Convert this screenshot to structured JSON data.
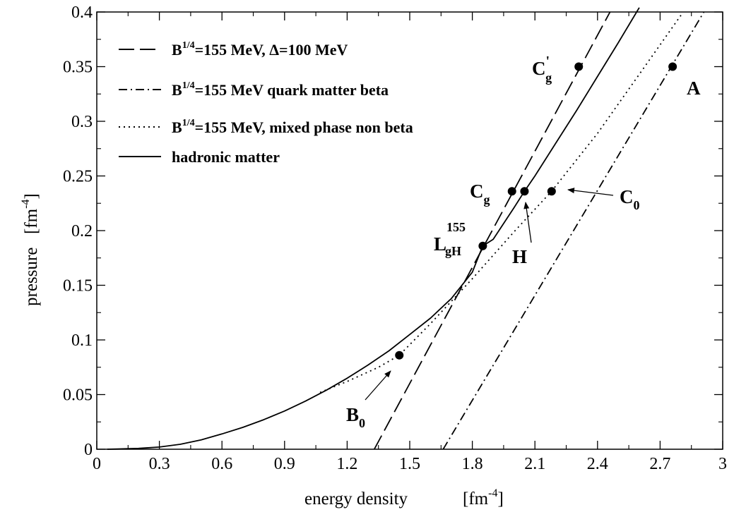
{
  "chart_data": {
    "type": "line",
    "xlabel": "energy density",
    "xlabel_unit_base": "[fm",
    "xlabel_unit_exp": "-4",
    "xlabel_unit_close": "]",
    "ylabel": "pressure",
    "ylabel_unit_base": "[fm",
    "ylabel_unit_exp": "-4",
    "ylabel_unit_close": "]",
    "xlim": [
      0,
      3
    ],
    "ylim": [
      0,
      0.4
    ],
    "x_ticks": [
      0,
      0.3,
      0.6,
      0.9,
      1.2,
      1.5,
      1.8,
      2.1,
      2.4,
      2.7,
      3
    ],
    "x_tick_labels": [
      "0",
      "0.3",
      "0.6",
      "0.9",
      "1.2",
      "1.5",
      "1.8",
      "2.1",
      "2.4",
      "2.7",
      "3"
    ],
    "y_ticks": [
      0,
      0.05,
      0.1,
      0.15,
      0.2,
      0.25,
      0.3,
      0.35,
      0.4
    ],
    "y_tick_labels": [
      "0",
      "0.05",
      "0.1",
      "0.15",
      "0.2",
      "0.25",
      "0.3",
      "0.35",
      "0.4"
    ],
    "grid": false,
    "legend_position": "top-left",
    "series": [
      {
        "name_base": "B",
        "name_sup": "1/4",
        "name_rest": "=155 MeV, Δ=100 MeV",
        "style": "dashed",
        "x": [
          1.33,
          2.46
        ],
        "y": [
          0.0,
          0.4
        ]
      },
      {
        "name_base": "B",
        "name_sup": "1/4",
        "name_rest": "=155 MeV quark matter beta",
        "style": "dashdot",
        "x": [
          1.66,
          2.91
        ],
        "y": [
          0.0,
          0.4
        ]
      },
      {
        "name_base": "B",
        "name_sup": "1/4",
        "name_rest": "=155 MeV, mixed phase non beta",
        "style": "dotted",
        "x": [
          1.07,
          1.2,
          1.35,
          1.45,
          1.6,
          1.8,
          2.0,
          2.18,
          2.4,
          2.6,
          2.8
        ],
        "y": [
          0.052,
          0.062,
          0.075,
          0.086,
          0.115,
          0.156,
          0.199,
          0.236,
          0.289,
          0.343,
          0.397
        ]
      },
      {
        "name": "hadronic matter",
        "style": "solid",
        "x": [
          0.05,
          0.1,
          0.2,
          0.3,
          0.4,
          0.5,
          0.6,
          0.7,
          0.8,
          0.9,
          1.0,
          1.1,
          1.2,
          1.3,
          1.4,
          1.5,
          1.6,
          1.7,
          1.8,
          1.85,
          1.9,
          2.0,
          2.05,
          2.1,
          2.2,
          2.3,
          2.4,
          2.5,
          2.6
        ],
        "y": [
          0.0,
          0.0002,
          0.0008,
          0.002,
          0.0045,
          0.0085,
          0.014,
          0.02,
          0.027,
          0.035,
          0.044,
          0.054,
          0.065,
          0.077,
          0.09,
          0.105,
          0.12,
          0.138,
          0.162,
          0.186,
          0.192,
          0.221,
          0.236,
          0.25,
          0.28,
          0.31,
          0.341,
          0.372,
          0.404
        ]
      }
    ],
    "points": [
      {
        "label": "B",
        "sub": "0",
        "x": 1.45,
        "y": 0.086
      },
      {
        "label": "L",
        "sub": "gH",
        "sup": "155",
        "x": 1.85,
        "y": 0.186
      },
      {
        "label": "C",
        "sub": "g",
        "x": 1.99,
        "y": 0.236
      },
      {
        "label": "H",
        "x": 2.05,
        "y": 0.236
      },
      {
        "label": "C",
        "sub": "0",
        "x": 2.18,
        "y": 0.236
      },
      {
        "label": "C",
        "sub": "g",
        "sup": "'",
        "x": 2.31,
        "y": 0.35
      },
      {
        "label": "A",
        "x": 2.76,
        "y": 0.35
      }
    ]
  }
}
